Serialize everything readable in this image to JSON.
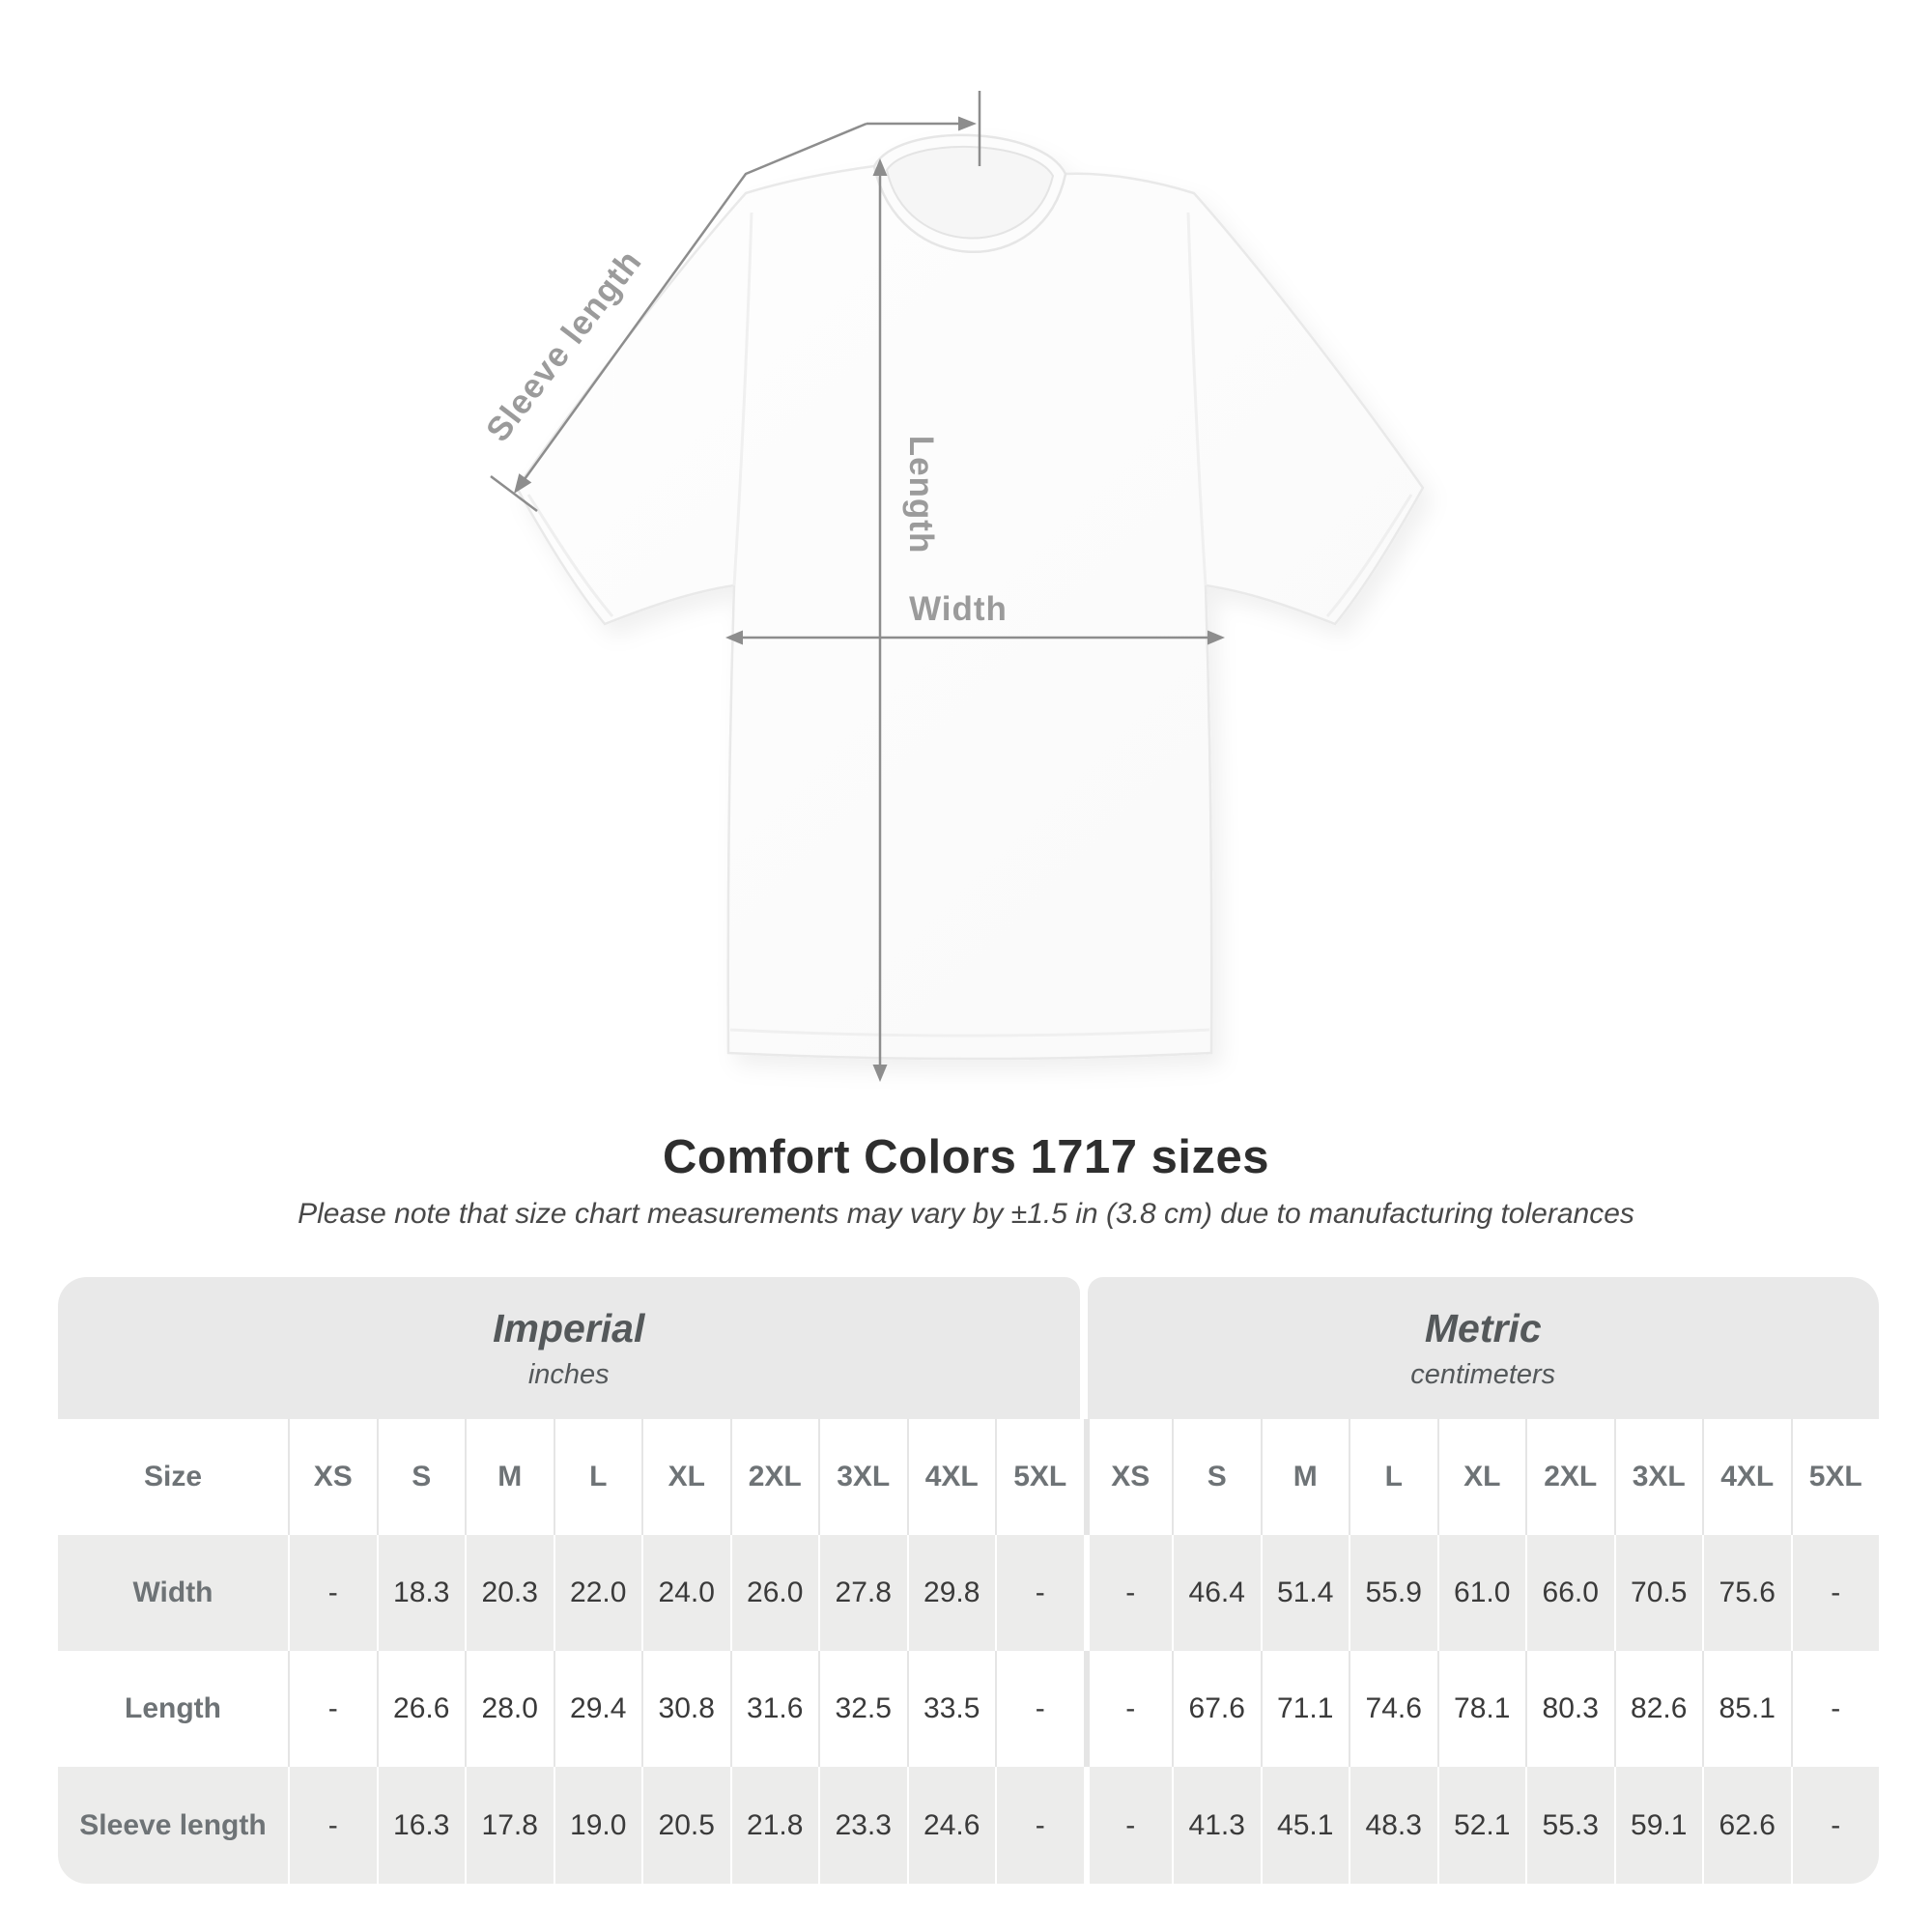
{
  "diagram": {
    "sleeve_label": "Sleeve length",
    "length_label": "Length",
    "width_label": "Width"
  },
  "title": "Comfort Colors 1717 sizes",
  "subtitle": "Please note that size chart measurements may vary by ±1.5 in (3.8 cm) due to manufacturing tolerances",
  "table": {
    "groups": [
      {
        "title": "Imperial",
        "subtitle": "inches"
      },
      {
        "title": "Metric",
        "subtitle": "centimeters"
      }
    ],
    "size_label": "Size",
    "sizes": [
      "XS",
      "S",
      "M",
      "L",
      "XL",
      "2XL",
      "3XL",
      "4XL",
      "5XL"
    ],
    "rows": [
      {
        "label": "Width",
        "imperial": [
          "-",
          "18.3",
          "20.3",
          "22.0",
          "24.0",
          "26.0",
          "27.8",
          "29.8",
          "-"
        ],
        "metric": [
          "-",
          "46.4",
          "51.4",
          "55.9",
          "61.0",
          "66.0",
          "70.5",
          "75.6",
          "-"
        ]
      },
      {
        "label": "Length",
        "imperial": [
          "-",
          "26.6",
          "28.0",
          "29.4",
          "30.8",
          "31.6",
          "32.5",
          "33.5",
          "-"
        ],
        "metric": [
          "-",
          "67.6",
          "71.1",
          "74.6",
          "78.1",
          "80.3",
          "82.6",
          "85.1",
          "-"
        ]
      },
      {
        "label": "Sleeve length",
        "imperial": [
          "-",
          "16.3",
          "17.8",
          "19.0",
          "20.5",
          "21.8",
          "23.3",
          "24.6",
          "-"
        ],
        "metric": [
          "-",
          "41.3",
          "45.1",
          "48.3",
          "52.1",
          "55.3",
          "59.1",
          "62.6",
          "-"
        ]
      }
    ]
  },
  "colors": {
    "dimension_line": "#8d8d8d",
    "dimension_label": "#9b9b9b",
    "band_background": "#e9e9e9",
    "stripe_background": "#ececeb",
    "title_text": "#2e2e2e",
    "value_text": "#3a3a3a",
    "header_text": "#6e7376"
  }
}
